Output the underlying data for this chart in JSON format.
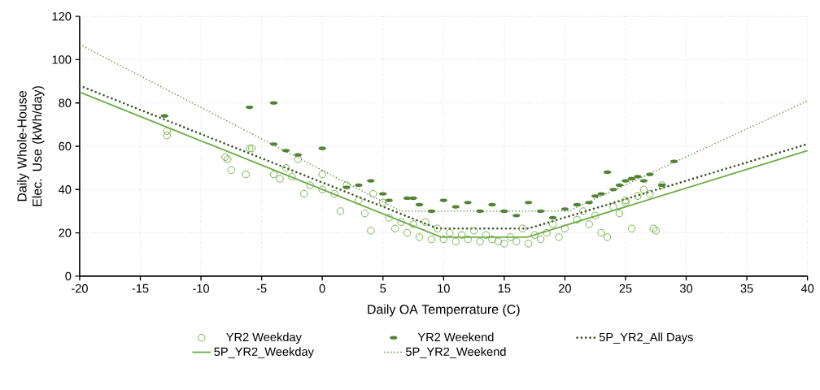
{
  "chart_data": {
    "type": "scatter",
    "xlabel": "Daily OA Temperrature (C)",
    "ylabel": "Daily Whole-House Elec. Use (kWh/day)",
    "xlim": [
      -20,
      40
    ],
    "xticks": [
      -20,
      -15,
      -10,
      -5,
      0,
      5,
      10,
      15,
      20,
      25,
      30,
      35,
      40
    ],
    "ylim": [
      0,
      120
    ],
    "yticks": [
      0,
      20,
      40,
      60,
      80,
      100,
      120
    ],
    "grid": true,
    "legend": "bottom",
    "series": [
      {
        "name": "YR2 Weekday",
        "marker": "circle",
        "color": "#70ad47",
        "x": [
          -12.8,
          -12.8,
          -8,
          -7.8,
          -7.5,
          -6.3,
          -6,
          -5.8,
          -4,
          -3.5,
          -3,
          -2.5,
          -2,
          -1.5,
          -1,
          0,
          0,
          1,
          1.5,
          2,
          3,
          3.5,
          4,
          4.2,
          5,
          5.5,
          6,
          6.5,
          7,
          7.5,
          8,
          8.5,
          9,
          9.5,
          10,
          10.5,
          11,
          11.5,
          12,
          12.5,
          13,
          13.5,
          14,
          14.5,
          15,
          15.5,
          16,
          16.5,
          17,
          17.5,
          18,
          18.5,
          19,
          19.5,
          20,
          21,
          21.5,
          22,
          22.5,
          23,
          23.5,
          24,
          24.5,
          25,
          25.5,
          26,
          26.5,
          27,
          27.3,
          27.5,
          28,
          25
        ],
        "values": [
          67,
          65,
          55,
          54,
          49,
          47,
          59,
          59,
          47,
          45,
          50,
          46,
          54,
          38,
          42,
          47,
          40,
          38,
          30,
          42,
          35,
          29,
          21,
          38,
          34,
          27,
          22,
          25,
          20,
          24,
          18,
          25,
          17,
          22,
          17,
          20,
          16,
          19,
          17,
          21,
          16,
          19,
          17,
          16,
          15,
          18,
          16,
          22,
          15,
          19,
          17,
          20,
          24,
          18,
          22,
          26,
          30,
          24,
          28,
          20,
          18,
          32,
          29,
          35,
          22,
          37,
          40,
          38,
          22,
          21,
          42,
          34
        ]
      },
      {
        "name": "YR2 Weekend",
        "color": "#548235",
        "x": [
          -13,
          -6,
          -4,
          -4,
          -3,
          -2,
          0,
          2,
          3,
          4,
          5,
          5.5,
          7,
          7.5,
          8,
          9,
          10,
          11,
          12,
          13,
          14,
          15,
          16,
          17,
          18,
          19,
          20,
          21,
          22,
          22.5,
          23,
          24,
          24.5,
          25,
          25.5,
          26,
          27,
          28,
          23.5,
          26.5,
          29
        ],
        "values": [
          74,
          78,
          80,
          61,
          58,
          56,
          59,
          41,
          42,
          44,
          38,
          35,
          36,
          36,
          33,
          30,
          35,
          32,
          34,
          30,
          33,
          30,
          28,
          34,
          30,
          27,
          31,
          33,
          34,
          37,
          38,
          40,
          42,
          44,
          45,
          46,
          47,
          42,
          48,
          44,
          53
        ]
      },
      {
        "name": "5P_YR2_All Days",
        "type": "line",
        "marker": "none",
        "line_style": "dotted",
        "color": "#375623",
        "x": [
          -20,
          9.5,
          17,
          40
        ],
        "values": [
          88,
          22,
          22,
          61
        ]
      },
      {
        "name": "5P_YR2_Weekday",
        "type": "line",
        "marker": "none",
        "line_style": "solid",
        "color": "#70ad47",
        "x": [
          -20,
          9.8,
          16.9,
          40
        ],
        "values": [
          85,
          18,
          18,
          58
        ]
      },
      {
        "name": "5P_YR2_Weekend",
        "type": "line",
        "marker": "none",
        "line_style": "dotted",
        "color": "#548235",
        "x": [
          -20,
          6.5,
          20.3,
          40
        ],
        "values": [
          107,
          30,
          30,
          81
        ]
      }
    ]
  }
}
